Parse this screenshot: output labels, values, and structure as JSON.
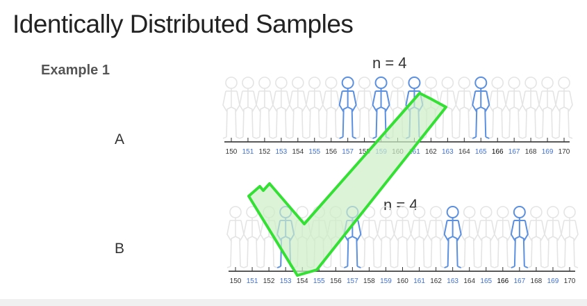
{
  "slide": {
    "title": "Identically Distributed Samples",
    "example_label": "Example 1"
  },
  "rows": [
    {
      "label": "A",
      "n_label": "n = 4",
      "highlighted": [
        157,
        159,
        161,
        165
      ]
    },
    {
      "label": "B",
      "n_label": "n = 4",
      "highlighted": [
        153,
        157,
        163,
        167
      ]
    }
  ],
  "axis": {
    "ticks": [
      "150",
      "151",
      "152",
      "153",
      "154",
      "155",
      "156",
      "157",
      "158",
      "159",
      "160",
      "161",
      "162",
      "163",
      "164",
      "165",
      "166",
      "167",
      "168",
      "169",
      "170"
    ],
    "blue_ticks": [
      "151",
      "153",
      "155",
      "157",
      "159",
      "161",
      "163",
      "165",
      "167",
      "169"
    ],
    "black_emphasis_tick": "166"
  },
  "colors": {
    "tick_blue": "#3f6fd1",
    "figure_blue": "#5b8fe0",
    "figure_faint": "#e4e4e4",
    "check_green": "#33e033",
    "check_fill": "#cdeec7"
  },
  "overlay": {
    "icon": "checkmark-icon"
  }
}
